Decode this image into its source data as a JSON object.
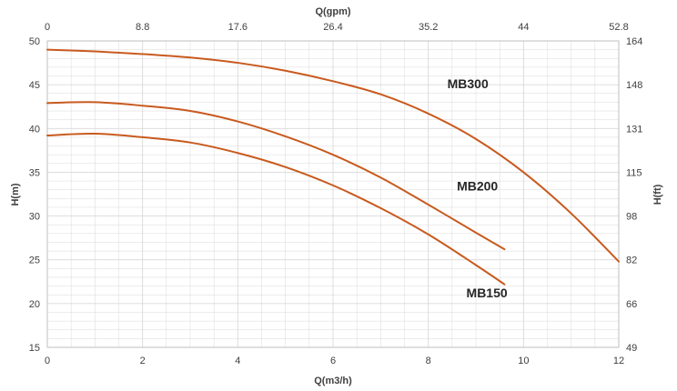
{
  "chart_data": {
    "type": "line",
    "xlabel": "Q(m3/h)",
    "ylabel": "H(m)",
    "x2label": "Q(gpm)",
    "y2label": "H(ft)",
    "xlim": [
      0,
      12
    ],
    "ylim": [
      15,
      50
    ],
    "x_ticks": [
      "0",
      "2",
      "4",
      "6",
      "8",
      "10",
      "12"
    ],
    "y_ticks": [
      "15",
      "20",
      "25",
      "30",
      "35",
      "40",
      "45",
      "50"
    ],
    "x2_ticks": [
      "0",
      "8.8",
      "17.6",
      "26.4",
      "35.2",
      "44",
      "52.8"
    ],
    "y2_ticks": [
      "49",
      "66",
      "82",
      "98",
      "115",
      "131",
      "148",
      "164"
    ],
    "grid": true,
    "line_color": "#c85a1e",
    "grid_color": "#d9d9d9",
    "series": [
      {
        "name": "MB300",
        "x": [
          0,
          1,
          2,
          3,
          4,
          5,
          6,
          7,
          8,
          9,
          10,
          11,
          12
        ],
        "y": [
          49.0,
          48.8,
          48.5,
          48.1,
          47.5,
          46.6,
          45.4,
          43.9,
          41.7,
          38.8,
          35.0,
          30.3,
          24.8
        ]
      },
      {
        "name": "MB200",
        "x": [
          0,
          1,
          2,
          3,
          4,
          5,
          6,
          7,
          8,
          9,
          9.6
        ],
        "y": [
          42.9,
          43.0,
          42.6,
          42.0,
          40.8,
          39.1,
          37.0,
          34.4,
          31.3,
          28.1,
          26.2
        ]
      },
      {
        "name": "MB150",
        "x": [
          0,
          1,
          2,
          3,
          4,
          5,
          6,
          7,
          8,
          9,
          9.6
        ],
        "y": [
          39.2,
          39.4,
          39.0,
          38.4,
          37.2,
          35.6,
          33.5,
          30.9,
          27.9,
          24.4,
          22.2
        ]
      }
    ]
  }
}
